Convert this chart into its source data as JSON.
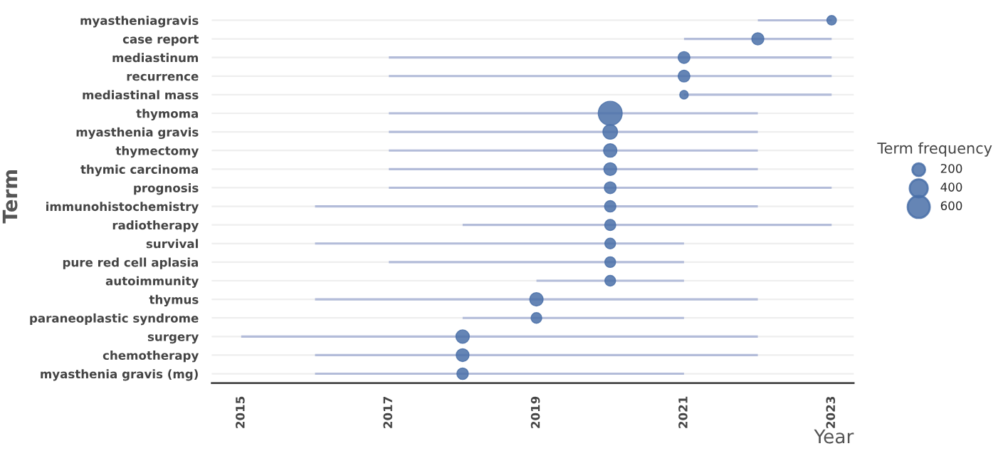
{
  "chart_data": {
    "type": "bar",
    "orientation": "horizontal",
    "xlabel": "Year",
    "ylabel": "Term",
    "legend_title": "Term frequency",
    "grid": "y",
    "categories": [
      "myastheniagravis",
      "case report",
      "mediastinum",
      "recurrence",
      "mediastinal mass",
      "thymoma",
      "myasthenia gravis",
      "thymectomy",
      "thymic carcinoma",
      "prognosis",
      "immunohistochemistry",
      "radiotherapy",
      "survival",
      "pure red cell aplasia",
      "autoimmunity",
      "thymus",
      "paraneoplastic syndrome",
      "surgery",
      "chemotherapy",
      "myasthenia gravis (mg)"
    ],
    "xlim": [
      2014.6,
      2023.3
    ],
    "xticks": [
      2015,
      2017,
      2019,
      2021,
      2023
    ],
    "size_legend": [
      200,
      400,
      600
    ],
    "series": [
      {
        "color": "#b3bcd9",
        "base": [
          2022,
          2021,
          2017,
          2017,
          2021,
          2017,
          2017,
          2017,
          2017,
          2017,
          2016,
          2018,
          2016,
          2017,
          2019,
          2016,
          2018,
          2015,
          2016,
          2016
        ],
        "values": [
          1,
          2,
          6,
          6,
          2,
          5,
          5,
          5,
          5,
          6,
          6,
          5,
          5,
          4,
          2,
          6,
          3,
          7,
          6,
          5
        ]
      },
      {
        "type": "bubble",
        "color": "#4a70a8",
        "values": [
          2023,
          2022,
          2021,
          2021,
          2021,
          2020,
          2020,
          2020,
          2020,
          2020,
          2020,
          2020,
          2020,
          2020,
          2020,
          2019,
          2019,
          2018,
          2018,
          2018
        ],
        "sizes": [
          110,
          180,
          170,
          170,
          90,
          700,
          260,
          220,
          200,
          170,
          160,
          150,
          140,
          140,
          140,
          220,
          140,
          220,
          200,
          160
        ]
      }
    ]
  }
}
